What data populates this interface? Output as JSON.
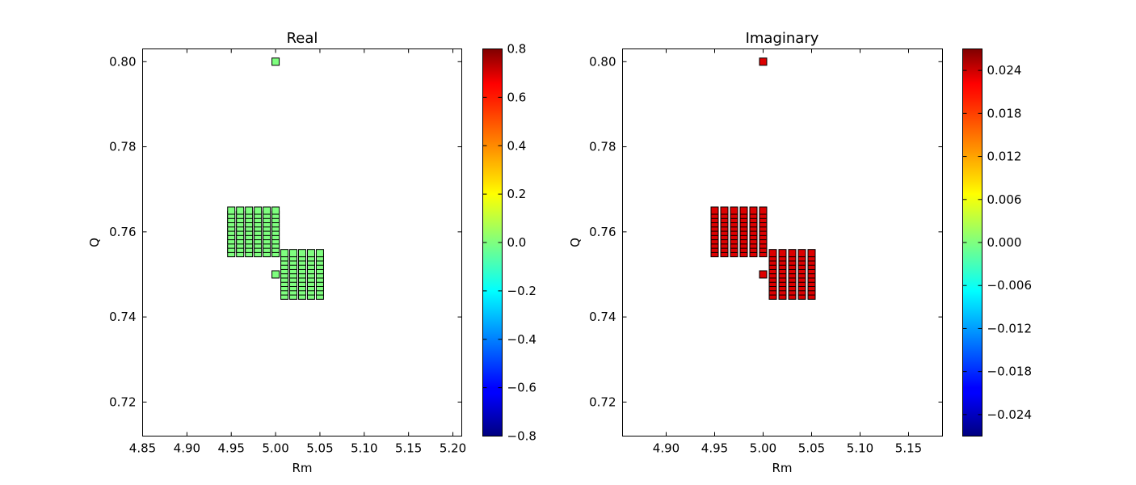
{
  "chart_data": [
    {
      "type": "scatter",
      "title": "Real",
      "xlabel": "Rm",
      "ylabel": "Q",
      "xlim": [
        4.85,
        5.21
      ],
      "ylim": [
        0.712,
        0.803
      ],
      "xticks": [
        "4.85",
        "4.90",
        "4.95",
        "5.00",
        "5.05",
        "5.10",
        "5.15",
        "5.20"
      ],
      "yticks": [
        "0.72",
        "0.74",
        "0.76",
        "0.78",
        "0.80"
      ],
      "marker": "square",
      "point_color": "#7fff7f",
      "colorbar": {
        "range": [
          -0.8,
          0.8
        ],
        "ticks": [
          "−0.8",
          "−0.6",
          "−0.4",
          "−0.2",
          "0.0",
          "0.2",
          "0.4",
          "0.6",
          "0.8"
        ]
      },
      "points": [
        {
          "x": 5.0,
          "y": 0.8
        },
        {
          "x": 5.0,
          "y": 0.75
        },
        {
          "group_xs": [
            4.95,
            4.96,
            4.97,
            4.98,
            4.99,
            5.0
          ],
          "group_ys": [
            0.755,
            0.756,
            0.757,
            0.758,
            0.759,
            0.76,
            0.761,
            0.762,
            0.763,
            0.764,
            0.765
          ]
        },
        {
          "group_xs": [
            5.01,
            5.02,
            5.03,
            5.04,
            5.05
          ],
          "group_ys": [
            0.745,
            0.746,
            0.747,
            0.748,
            0.749,
            0.75,
            0.751,
            0.752,
            0.753,
            0.754,
            0.755
          ]
        }
      ],
      "grid": false
    },
    {
      "type": "scatter",
      "title": "Imaginary",
      "xlabel": "Rm",
      "ylabel": "Q",
      "xlim": [
        4.855,
        5.185
      ],
      "ylim": [
        0.712,
        0.803
      ],
      "xticks": [
        "4.90",
        "4.95",
        "5.00",
        "5.05",
        "5.10",
        "5.15"
      ],
      "yticks": [
        "0.72",
        "0.74",
        "0.76",
        "0.78",
        "0.80"
      ],
      "marker": "square",
      "point_color": "#dd0000",
      "colorbar": {
        "range": [
          -0.027,
          0.027
        ],
        "ticks": [
          "−0.024",
          "−0.018",
          "−0.012",
          "−0.006",
          "0.000",
          "0.006",
          "0.012",
          "0.018",
          "0.024"
        ]
      },
      "points": [
        {
          "x": 5.0,
          "y": 0.8
        },
        {
          "x": 5.0,
          "y": 0.75
        },
        {
          "group_xs": [
            4.95,
            4.96,
            4.97,
            4.98,
            4.99,
            5.0
          ],
          "group_ys": [
            0.755,
            0.756,
            0.757,
            0.758,
            0.759,
            0.76,
            0.761,
            0.762,
            0.763,
            0.764,
            0.765
          ]
        },
        {
          "group_xs": [
            5.01,
            5.02,
            5.03,
            5.04,
            5.05
          ],
          "group_ys": [
            0.745,
            0.746,
            0.747,
            0.748,
            0.749,
            0.75,
            0.751,
            0.752,
            0.753,
            0.754,
            0.755
          ]
        }
      ],
      "grid": false
    }
  ]
}
